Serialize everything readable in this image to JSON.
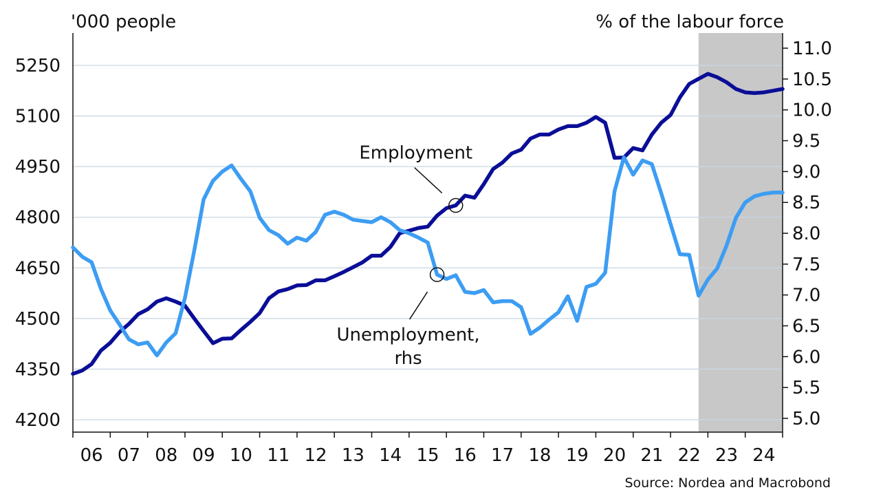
{
  "chart_data": {
    "type": "line",
    "left_unit_label": "'000 people",
    "right_unit_label": "% of the labour force",
    "source": "Source: Nordea and Macrobond",
    "y_left": {
      "range": [
        4200,
        5350
      ],
      "ticks": [
        4200,
        4350,
        4500,
        4650,
        4800,
        4950,
        5100,
        5250
      ]
    },
    "y_right": {
      "range": [
        5.0,
        11.25
      ],
      "ticks": [
        "5.0",
        "5.5",
        "6.0",
        "6.5",
        "7.0",
        "7.5",
        "8.0",
        "8.5",
        "9.0",
        "9.5",
        "10.0",
        "10.5",
        "11.0"
      ]
    },
    "x_range": [
      2006.0,
      2025.0
    ],
    "x_ticks": [
      "06",
      "07",
      "08",
      "09",
      "10",
      "11",
      "12",
      "13",
      "14",
      "15",
      "16",
      "17",
      "18",
      "19",
      "20",
      "21",
      "22",
      "23",
      "24"
    ],
    "gridlines": true,
    "forecast_shading": {
      "from": 2022.75,
      "to": 2025.0,
      "color": "#c8c8c8"
    },
    "annotations": [
      {
        "label_lines": [
          "Employment"
        ],
        "series": "employment",
        "x": 2016.25
      },
      {
        "label_lines": [
          "Unemployment,",
          "rhs"
        ],
        "series": "unemployment",
        "x": 2015.75
      }
    ],
    "series": [
      {
        "key": "employment",
        "axis": "left",
        "color": "#0a0e96",
        "x": [
          2006.0,
          2006.25,
          2006.5,
          2006.75,
          2007.0,
          2007.25,
          2007.5,
          2007.75,
          2008.0,
          2008.25,
          2008.5,
          2008.75,
          2009.0,
          2009.25,
          2009.5,
          2009.75,
          2010.0,
          2010.25,
          2010.5,
          2010.75,
          2011.0,
          2011.25,
          2011.5,
          2011.75,
          2012.0,
          2012.25,
          2012.5,
          2012.75,
          2013.0,
          2013.25,
          2013.5,
          2013.75,
          2014.0,
          2014.25,
          2014.5,
          2014.75,
          2015.0,
          2015.25,
          2015.5,
          2015.75,
          2016.0,
          2016.25,
          2016.5,
          2016.75,
          2017.0,
          2017.25,
          2017.5,
          2017.75,
          2018.0,
          2018.25,
          2018.5,
          2018.75,
          2019.0,
          2019.25,
          2019.5,
          2019.75,
          2020.0,
          2020.25,
          2020.5,
          2020.75,
          2021.0,
          2021.25,
          2021.5,
          2021.75,
          2022.0,
          2022.25,
          2022.5,
          2022.75,
          2023.0,
          2023.25,
          2023.5,
          2023.75,
          2024.0,
          2024.25,
          2024.5,
          2024.75,
          2025.0
        ],
        "values": [
          4336,
          4346,
          4365,
          4405,
          4428,
          4460,
          4484,
          4513,
          4527,
          4550,
          4560,
          4550,
          4538,
          4500,
          4463,
          4427,
          4440,
          4441,
          4466,
          4490,
          4516,
          4560,
          4580,
          4587,
          4598,
          4599,
          4613,
          4613,
          4625,
          4638,
          4652,
          4666,
          4686,
          4686,
          4712,
          4753,
          4760,
          4768,
          4772,
          4805,
          4827,
          4835,
          4864,
          4858,
          4898,
          4943,
          4962,
          4989,
          5000,
          5033,
          5045,
          5045,
          5060,
          5070,
          5070,
          5080,
          5097,
          5080,
          4976,
          4977,
          5005,
          4998,
          5045,
          5080,
          5103,
          5155,
          5195,
          5210,
          5225,
          5215,
          5200,
          5180,
          5170,
          5168,
          5170,
          5175,
          5180
        ]
      },
      {
        "key": "unemployment",
        "axis": "right",
        "color": "#3d9df2",
        "x": [
          2006.0,
          2006.25,
          2006.5,
          2006.75,
          2007.0,
          2007.25,
          2007.5,
          2007.75,
          2008.0,
          2008.25,
          2008.5,
          2008.75,
          2009.0,
          2009.25,
          2009.5,
          2009.75,
          2010.0,
          2010.25,
          2010.5,
          2010.75,
          2011.0,
          2011.25,
          2011.5,
          2011.75,
          2012.0,
          2012.25,
          2012.5,
          2012.75,
          2013.0,
          2013.25,
          2013.5,
          2013.75,
          2014.0,
          2014.25,
          2014.5,
          2014.75,
          2015.0,
          2015.25,
          2015.5,
          2015.75,
          2016.0,
          2016.25,
          2016.5,
          2016.75,
          2017.0,
          2017.25,
          2017.5,
          2017.75,
          2018.0,
          2018.25,
          2018.5,
          2018.75,
          2019.0,
          2019.25,
          2019.5,
          2019.75,
          2020.0,
          2020.25,
          2020.5,
          2020.75,
          2021.0,
          2021.25,
          2021.5,
          2021.75,
          2022.0,
          2022.25,
          2022.5,
          2022.75,
          2023.0,
          2023.25,
          2023.5,
          2023.75,
          2024.0,
          2024.25,
          2024.5,
          2024.75,
          2025.0
        ],
        "values": [
          7.77,
          7.62,
          7.53,
          7.1,
          6.75,
          6.52,
          6.28,
          6.2,
          6.23,
          6.02,
          6.23,
          6.38,
          6.95,
          7.72,
          8.55,
          8.85,
          9.0,
          9.1,
          8.88,
          8.68,
          8.25,
          8.05,
          7.97,
          7.83,
          7.93,
          7.88,
          8.02,
          8.3,
          8.35,
          8.3,
          8.22,
          8.2,
          8.18,
          8.26,
          8.18,
          8.05,
          8.0,
          7.93,
          7.85,
          7.33,
          7.26,
          7.32,
          7.05,
          7.03,
          7.08,
          6.88,
          6.9,
          6.9,
          6.8,
          6.37,
          6.47,
          6.6,
          6.72,
          6.98,
          6.58,
          7.13,
          7.18,
          7.36,
          8.68,
          9.23,
          8.95,
          9.18,
          9.12,
          8.65,
          8.15,
          7.66,
          7.65,
          6.99,
          7.25,
          7.43,
          7.8,
          8.25,
          8.5,
          8.6,
          8.64,
          8.66,
          8.66
        ]
      }
    ]
  }
}
